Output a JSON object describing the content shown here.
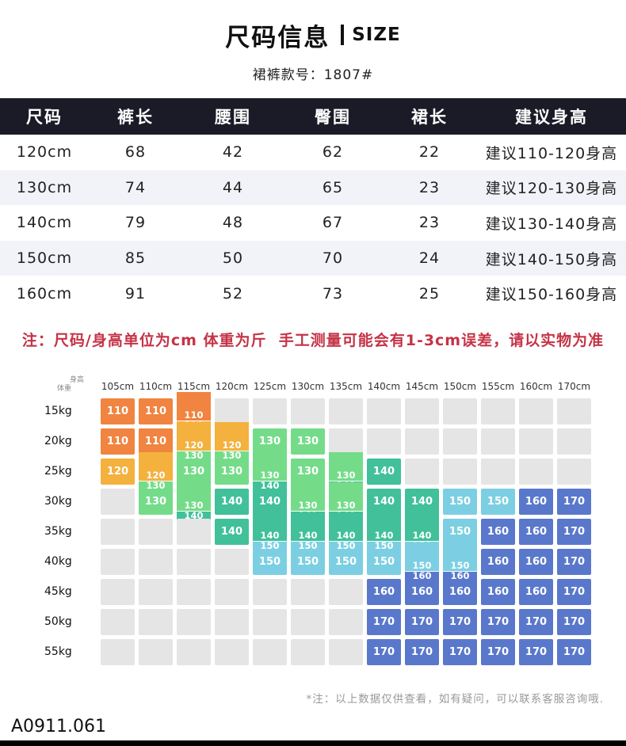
{
  "header": {
    "title_cn": "尺码信息",
    "title_en": "SIZE",
    "subtitle": "裙裤款号：1807#"
  },
  "size_table": {
    "columns": [
      "尺码",
      "裤长",
      "腰围",
      "臀围",
      "裙长",
      "建议身高"
    ],
    "rows": [
      [
        "120cm",
        "68",
        "42",
        "62",
        "22",
        "建议110-120身高"
      ],
      [
        "130cm",
        "74",
        "44",
        "65",
        "23",
        "建议120-130身高"
      ],
      [
        "140cm",
        "79",
        "48",
        "67",
        "23",
        "建议130-140身高"
      ],
      [
        "150cm",
        "85",
        "50",
        "70",
        "24",
        "建议140-150身高"
      ],
      [
        "160cm",
        "91",
        "52",
        "73",
        "25",
        "建议150-160身高"
      ]
    ]
  },
  "note": "注：尺码/身高单位为cm 体重为斤  手工测量可能会有1-3cm误差，请以实物为准",
  "fit_matrix": {
    "corner": {
      "top": "身高",
      "bottom": "体重"
    },
    "columns": [
      "105cm",
      "110cm",
      "115cm",
      "120cm",
      "125cm",
      "130cm",
      "135cm",
      "140cm",
      "145cm",
      "150cm",
      "155cm",
      "160cm",
      "170cm"
    ],
    "row_labels": [
      "15kg",
      "20kg",
      "25kg",
      "30kg",
      "35kg",
      "40kg",
      "45kg",
      "50kg",
      "55kg"
    ],
    "cells": [
      [
        "110|orange",
        "110|orange",
        "110/120|orange/amber",
        "",
        "",
        "",
        "",
        "",
        "",
        "",
        "",
        "",
        ""
      ],
      [
        "110|orange",
        "110|orange",
        "120/130|amber/green",
        "120/130|amber/green",
        "130|green",
        "130|green",
        "",
        "",
        "",
        "",
        "",
        "",
        ""
      ],
      [
        "120|amber",
        "120/130|amber/green",
        "130|green",
        "130|green",
        "130/140|green/teal",
        "130|green",
        "130/140|green/teal",
        "140|teal",
        "",
        "",
        "",
        "",
        ""
      ],
      [
        "",
        "130|green",
        "130/140|green/teal",
        "140|teal",
        "140|teal",
        "130/140|green/teal",
        "130/140|green/teal",
        "140|teal",
        "140|teal",
        "150|lightblue",
        "150|lightblue",
        "160|indigo",
        "170|indigo"
      ],
      [
        "",
        "",
        "",
        "140|teal",
        "140/150|teal/lightblue",
        "140/150|teal/lightblue",
        "140/150|teal/lightblue",
        "140/150|teal/lightblue",
        "140/150|teal/lightblue",
        "150|lightblue",
        "160|indigo",
        "160|indigo",
        "170|indigo"
      ],
      [
        "",
        "",
        "",
        "",
        "150|lightblue",
        "150|lightblue",
        "150|lightblue",
        "150|lightblue",
        "150/160|lightblue/indigo",
        "150/160|lightblue/indigo",
        "160|indigo",
        "160|indigo",
        "170|indigo"
      ],
      [
        "",
        "",
        "",
        "",
        "",
        "",
        "",
        "160|indigo",
        "160|indigo",
        "160|indigo",
        "160|indigo",
        "160|indigo",
        "170|indigo"
      ],
      [
        "",
        "",
        "",
        "",
        "",
        "",
        "",
        "170|indigo",
        "170|indigo",
        "170|indigo",
        "170|indigo",
        "170|indigo",
        "170|indigo"
      ],
      [
        "",
        "",
        "",
        "",
        "",
        "",
        "",
        "170|indigo",
        "170|indigo",
        "170|indigo",
        "170|indigo",
        "170|indigo",
        "170|indigo"
      ]
    ]
  },
  "colors": {
    "orange": "#F08440",
    "amber": "#F4B13E",
    "green": "#74DC89",
    "teal": "#41C09A",
    "lightblue": "#7CCFE2",
    "indigo": "#5A78CB",
    "empty": "#E5E5E5",
    "header_bar": "#1B1B27",
    "note_red": "#C53346",
    "stripe": "#F1F3F9"
  },
  "footnote": "*注：以上数据仅供查看，如有疑问，可以联系客服咨询哦.",
  "product_code": "A0911.061"
}
